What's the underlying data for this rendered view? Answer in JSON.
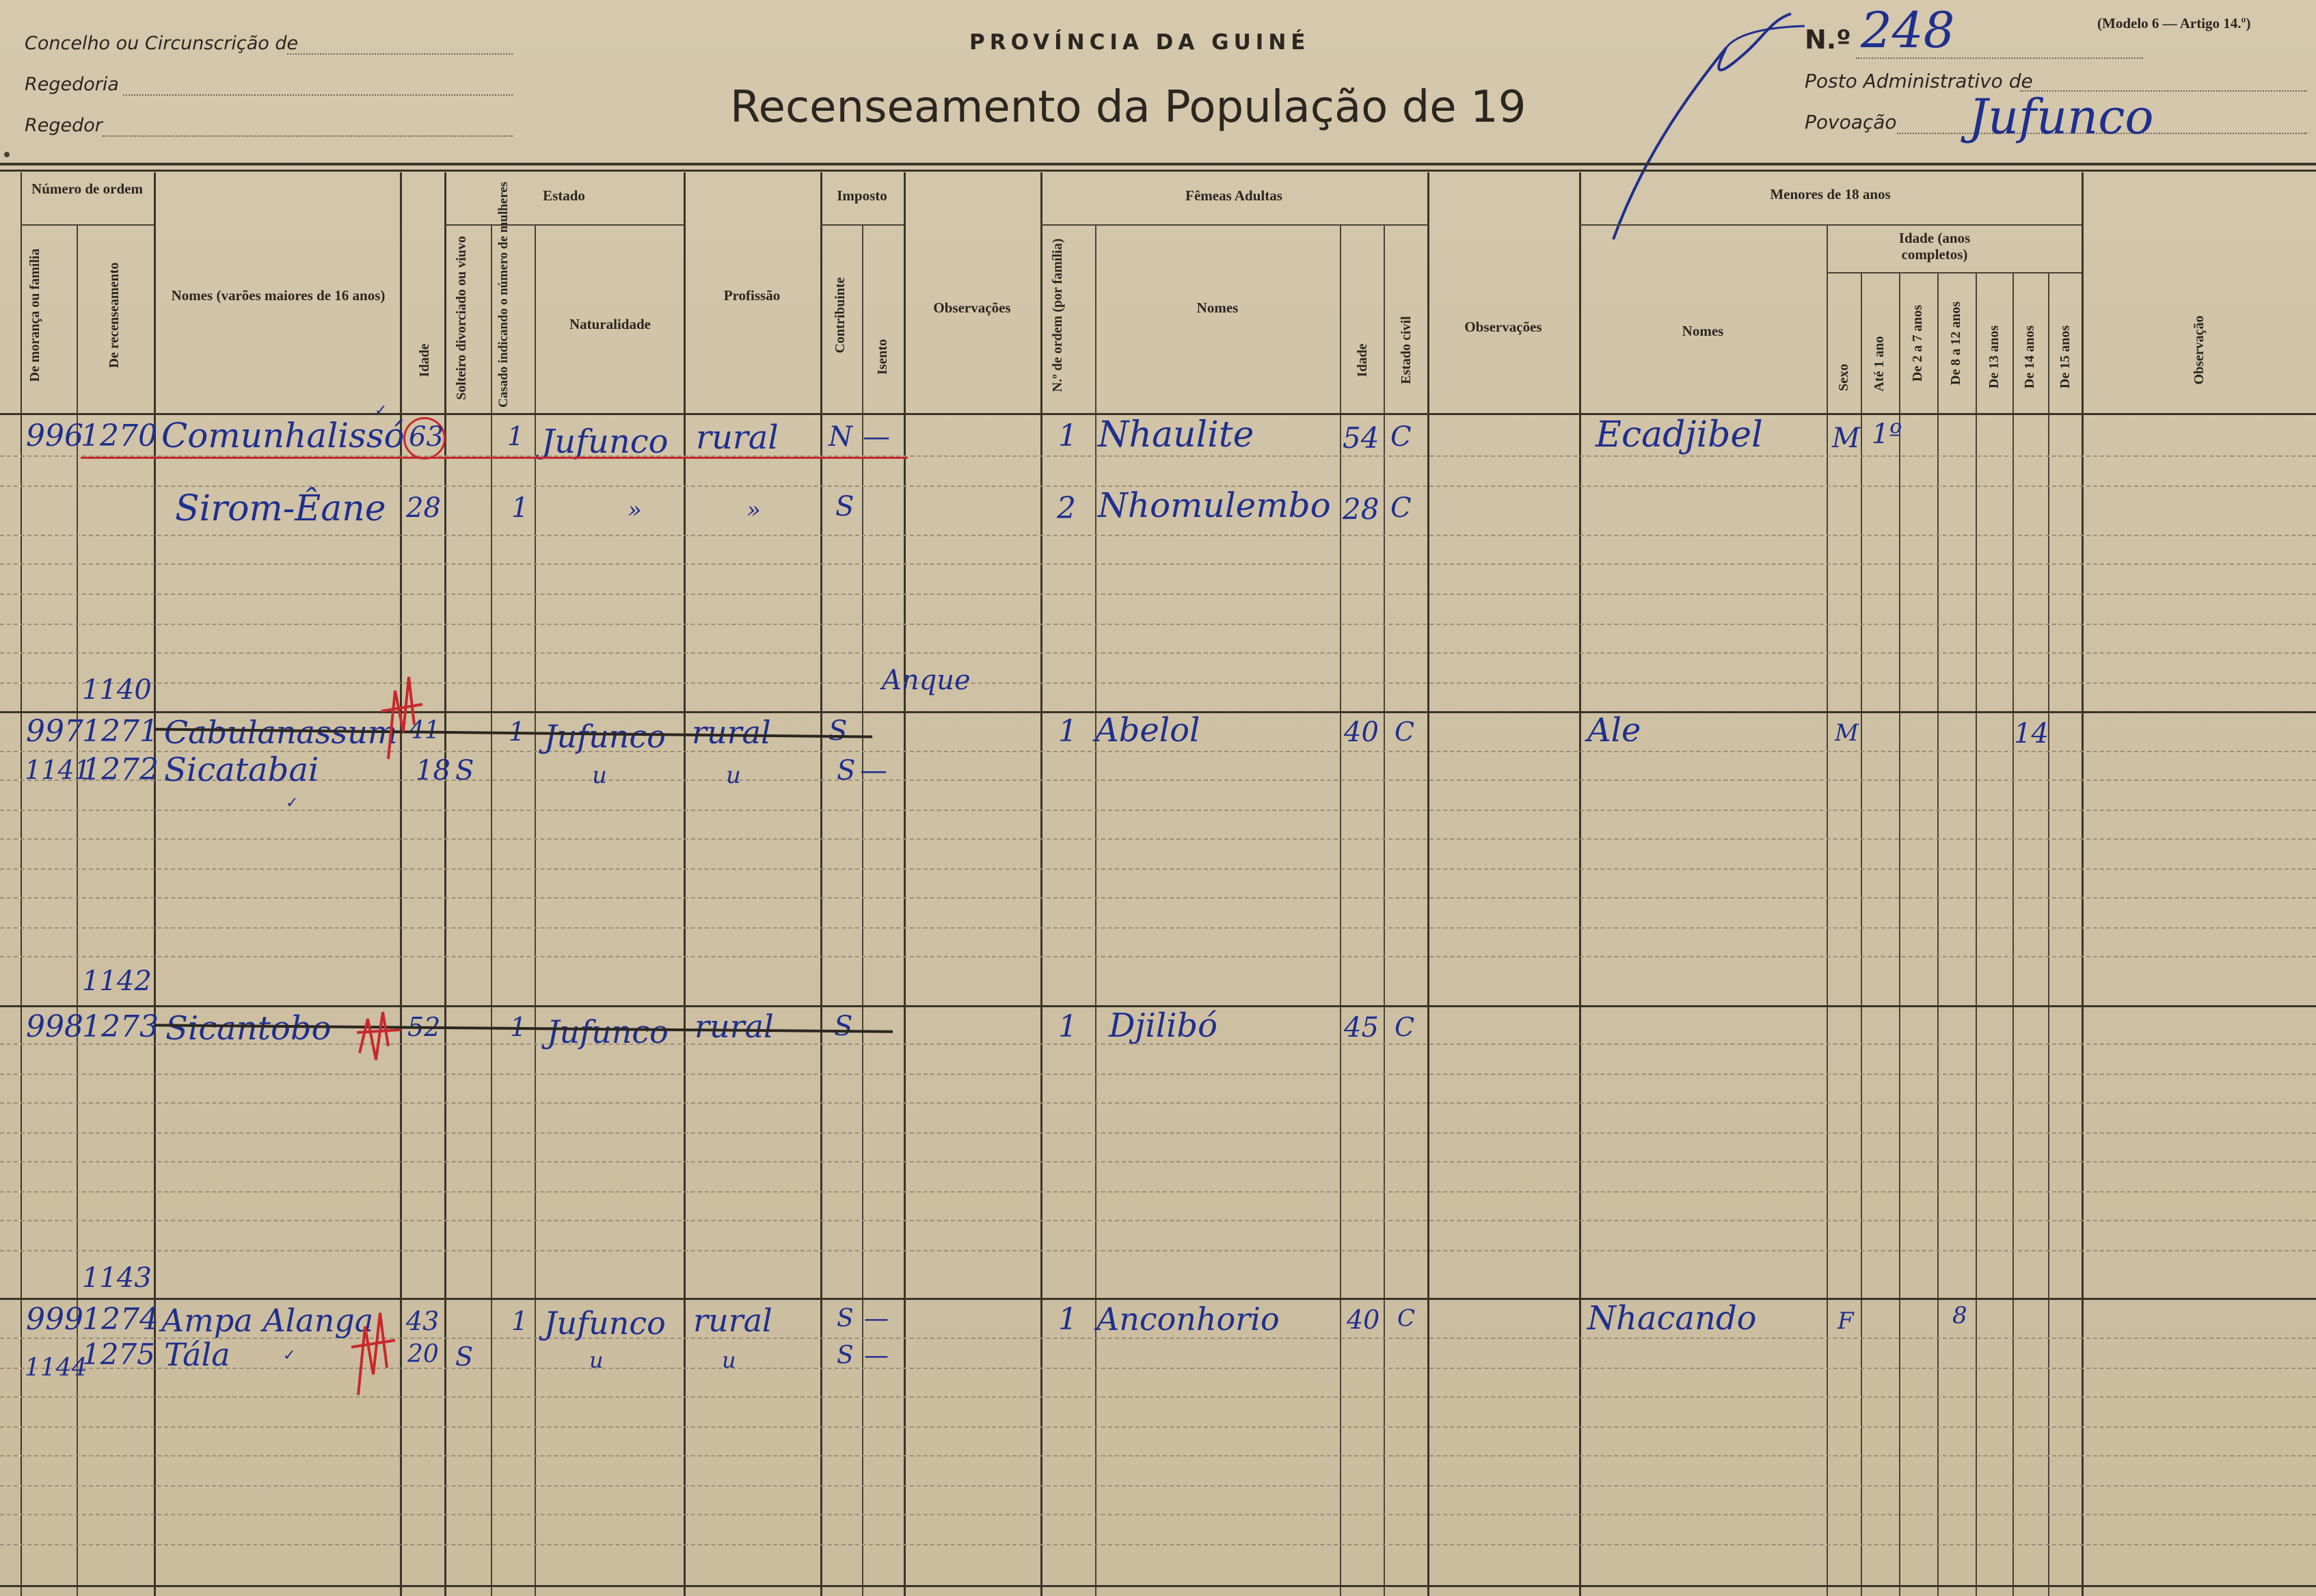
{
  "header": {
    "top_left": {
      "l1": "Concelho ou Circunscrição de",
      "l2": "Regedoria",
      "l3": "Regedor"
    },
    "province": "PROVÍNCIA DA GUINÉ",
    "title": "Recenseamento da População de 19",
    "model": "(Modelo 6 — Artigo 14.º)",
    "number_label": "N.º",
    "number_value": "248",
    "posto": "Posto Administrativo de",
    "povoacao_label": "Povoação",
    "povoacao_value": "Jufunco"
  },
  "columns": {
    "numero": "Número de ordem",
    "morança": "De morança ou família",
    "recenseamento": "De recenseamento",
    "nomes_varoes": "Nomes (varões maiores de 16 anos)",
    "idade": "Idade",
    "estado": "Estado",
    "solteiro": "Solteiro divorciado ou viuvo",
    "casado": "Casado indicando o número de mulheres",
    "naturalidade": "Naturalidade",
    "profissao": "Profissão",
    "imposto": "Imposto",
    "contribuinte": "Contribuinte",
    "isento": "Isento",
    "observacoes": "Observações",
    "femeas": "Fêmeas Adultas",
    "ordem_familia": "N.º de ordem (por família)",
    "nomes": "Nomes",
    "idade_f": "Idade",
    "estado_civil": "Estado civil",
    "observacoes2": "Observações",
    "menores": "Menores de 18 anos",
    "nomes_m": "Nomes",
    "idade_anos": "Idade (anos completos)",
    "sexo": "Sexo",
    "ate1": "Até 1 ano",
    "de2a7": "De 2 a 7 anos",
    "de8a12": "De 8 a 12 anos",
    "de13": "De 13 anos",
    "de14": "De 14 anos",
    "de15": "De 15 anos",
    "observacao": "Observação"
  },
  "entries": [
    {
      "moranca": "996",
      "recens": "1270",
      "nome": "Comunhalissó",
      "idade": "63",
      "casado": "1",
      "naturalidade": "Jufunco",
      "profissao": "rural",
      "contribuinte": "N",
      "isento": "—",
      "f_ordem": "1",
      "f_nome": "Nhaulite",
      "f_idade": "54",
      "f_estado": "C",
      "m_nome": "Ecadjibel",
      "m_sexo": "M",
      "m_ate1": "1º"
    },
    {
      "nome": "Sirom-Êane",
      "idade": "28",
      "casado": "1",
      "naturalidade": "»",
      "profissao": "»",
      "contribuinte": "S",
      "f_ordem": "2",
      "f_nome": "Nhomulembo",
      "f_idade": "28",
      "f_estado": "C"
    },
    {
      "note_above": "1140",
      "side_note": "Anque",
      "moranca": "997",
      "recens": "1271",
      "nome": "Cabulanassum",
      "idade": "41",
      "casado": "1",
      "naturalidade": "Jufunco",
      "profissao": "rural",
      "contribuinte": "S",
      "f_ordem": "1",
      "f_nome": "Abelol",
      "f_idade": "40",
      "f_estado": "C",
      "m_nome": "Ale",
      "m_sexo": "M",
      "m_de14": "14"
    },
    {
      "left_note": "1141",
      "recens": "1272",
      "nome": "Sicatabai",
      "idade": "18",
      "solteiro": "S",
      "naturalidade": "u",
      "profissao": "u",
      "contribuinte": "S",
      "isento": "—"
    },
    {
      "note_above": "1142",
      "moranca": "998",
      "recens": "1273",
      "nome": "Sicantobo",
      "idade": "52",
      "casado": "1",
      "naturalidade": "Jufunco",
      "profissao": "rural",
      "contribuinte": "S",
      "f_ordem": "1",
      "f_nome": "Djilibó",
      "f_idade": "45",
      "f_estado": "C"
    },
    {
      "note_above": "1143",
      "moranca": "999",
      "recens": "1274",
      "nome": "Ampa Alanga",
      "idade": "43",
      "casado": "1",
      "naturalidade": "Jufunco",
      "profissao": "rural",
      "contribuinte": "S",
      "isento": "—",
      "f_ordem": "1",
      "f_nome": "Anconhorio",
      "f_idade": "40",
      "f_estado": "C",
      "m_nome": "Nhacando",
      "m_sexo": "F",
      "m_de8a12": "8"
    },
    {
      "left_note": "1144",
      "recens": "1275",
      "nome": "Tála",
      "idade": "20",
      "solteiro": "S",
      "naturalidade": "u",
      "profissao": "u",
      "contribuinte": "S",
      "isento": "—"
    }
  ],
  "colors": {
    "paper": "#cfc1a4",
    "ink_blue": "#1e2f8e",
    "ink_red": "#c8282c",
    "rule": "#3a342a"
  }
}
